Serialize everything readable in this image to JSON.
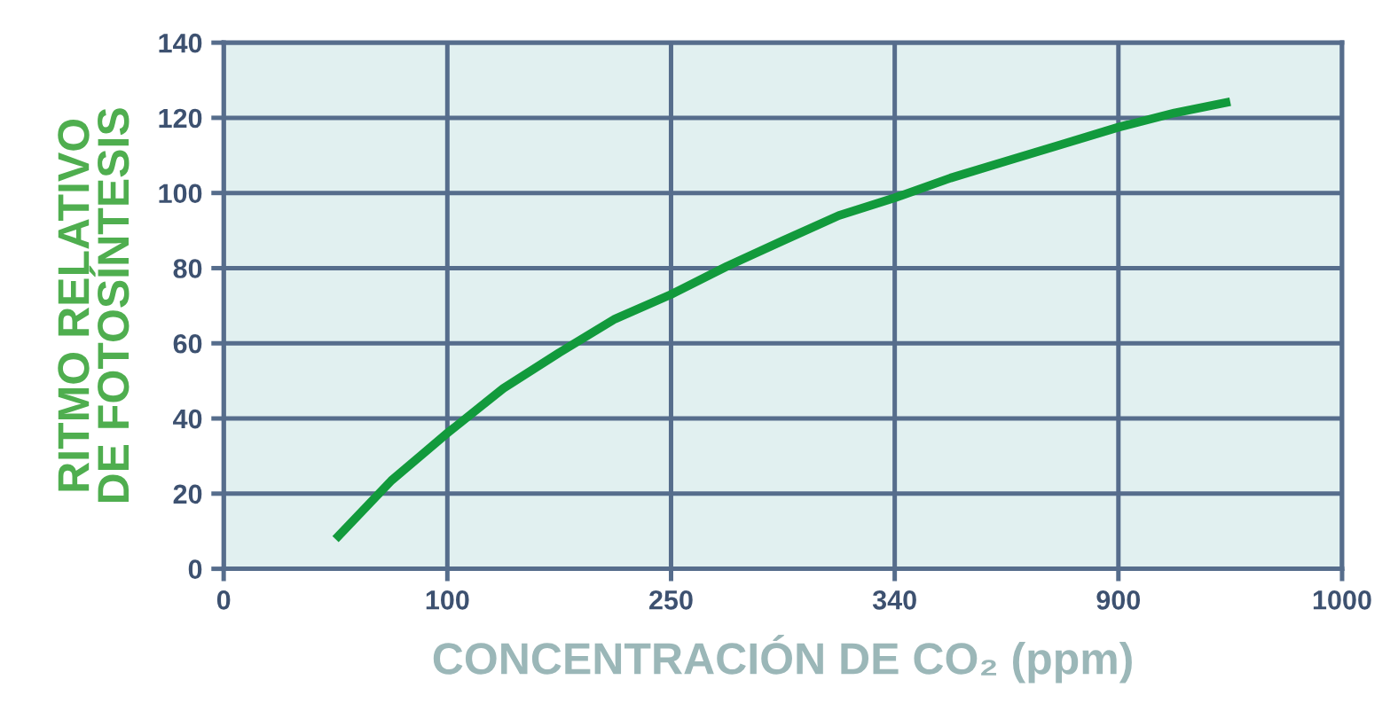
{
  "chart_data": {
    "type": "line",
    "xlabel": "CONCENTRACIÓN DE CO₂ (ppm)",
    "ylabel": "RITMO RELATIVO\nDE FOTOSÍNTESIS",
    "categories": [
      "0",
      null,
      null,
      null,
      "100",
      null,
      null,
      null,
      "250",
      null,
      null,
      null,
      "340",
      null,
      null,
      null,
      "900",
      null,
      null,
      null,
      "1000"
    ],
    "series": [
      {
        "color": "#129a3c",
        "values": [
          null,
          null,
          7.9,
          23.5,
          36.1,
          48,
          57.5,
          66.5,
          73.0,
          80.5,
          87.3,
          94,
          98.7,
          104,
          108.5,
          113,
          117.5,
          121.3,
          124.3,
          null,
          null
        ]
      }
    ],
    "ylim": [
      0,
      140
    ],
    "yticks": [
      0,
      20,
      40,
      60,
      80,
      100,
      120,
      140
    ],
    "grid": true,
    "marker": "none",
    "line_style": "solid"
  }
}
